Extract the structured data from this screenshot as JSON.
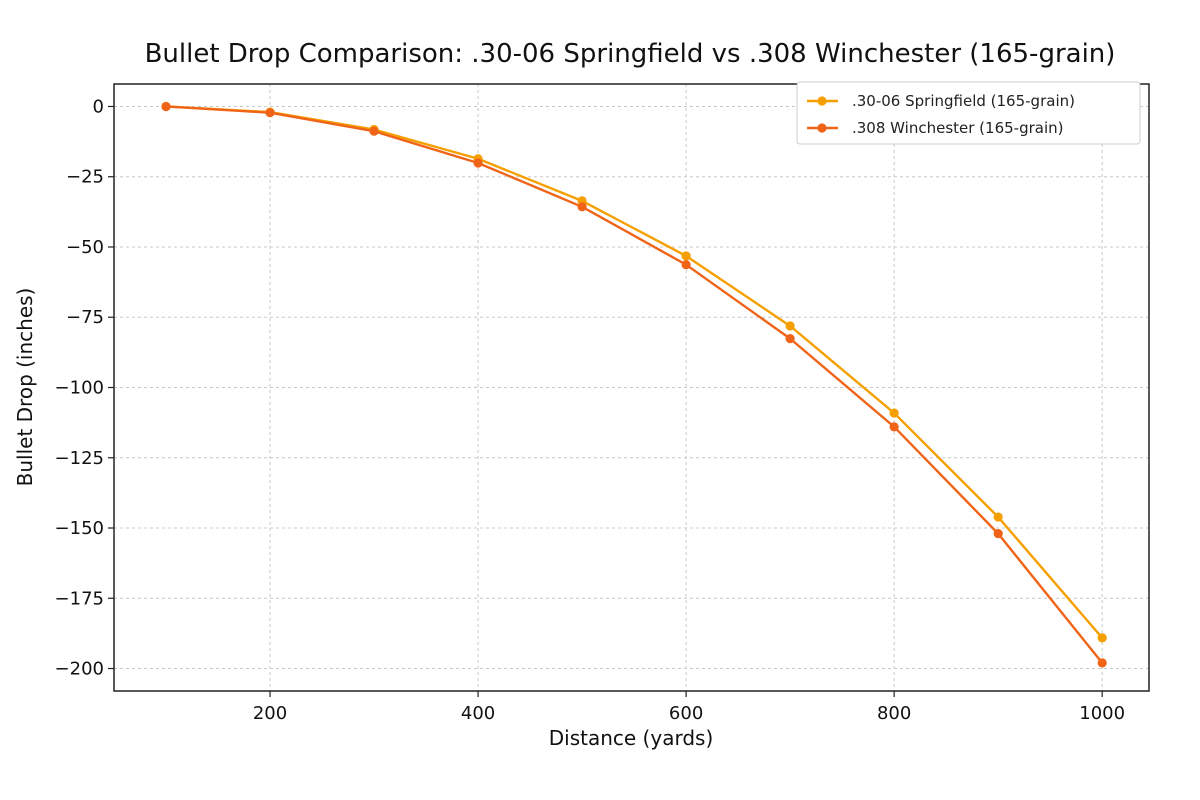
{
  "chart_data": {
    "type": "line",
    "title": "Bullet Drop Comparison: .30-06 Springfield vs .308 Winchester (165-grain)",
    "xlabel": "Distance (yards)",
    "ylabel": "Bullet Drop (inches)",
    "xlim": [
      50,
      1045
    ],
    "ylim": [
      -208,
      8
    ],
    "x_ticks": [
      200,
      400,
      600,
      800,
      1000
    ],
    "x_tick_labels": [
      "200",
      "400",
      "600",
      "800",
      "1000"
    ],
    "y_ticks": [
      0,
      -25,
      -50,
      -75,
      -100,
      -125,
      -150,
      -175,
      -200
    ],
    "y_tick_labels": [
      "0",
      "−25",
      "−50",
      "−75",
      "−100",
      "−125",
      "−150",
      "−175",
      "−200"
    ],
    "grid": true,
    "legend_position": "top-right",
    "x": [
      100,
      200,
      300,
      400,
      500,
      600,
      700,
      800,
      900,
      1000
    ],
    "series": [
      {
        "name": ".30-06 Springfield (165-grain)",
        "color": "#f5a000",
        "values": [
          0,
          -2,
          -8.2,
          -18.6,
          -33.6,
          -53.2,
          -78.1,
          -109.1,
          -146.1,
          -189.1
        ]
      },
      {
        "name": ".308 Winchester (165-grain)",
        "color": "#f06418",
        "values": [
          0,
          -2.2,
          -8.8,
          -20.1,
          -35.7,
          -56.3,
          -82.6,
          -114.0,
          -152.0,
          -198.0
        ]
      }
    ]
  }
}
